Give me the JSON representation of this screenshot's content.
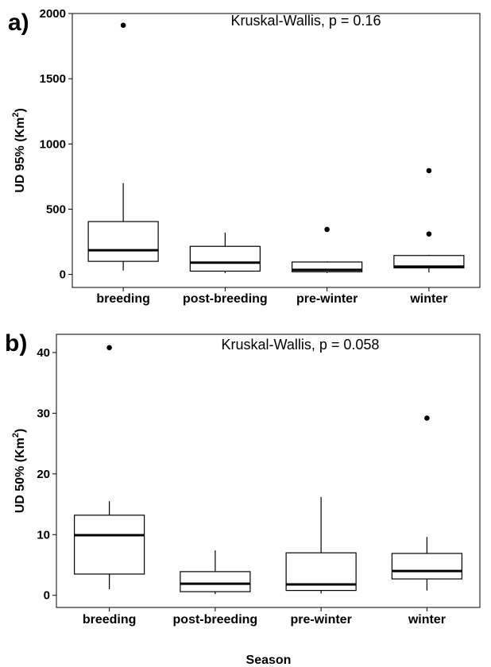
{
  "chart_data": [
    {
      "type": "boxplot",
      "panel_label": "a)",
      "annotation": "Kruskal-Wallis, p = 0.16",
      "ylabel_main": "UD 95% (Km",
      "ylabel_sup": "2",
      "ylabel_close": ")",
      "ylim": [
        -100,
        2000
      ],
      "yticks": [
        0,
        500,
        1000,
        1500,
        2000
      ],
      "categories": [
        "breeding",
        "post-breeding",
        "pre-winter",
        "winter"
      ],
      "boxes": [
        {
          "q1": 100,
          "median": 185,
          "q3": 405,
          "whisker_low": 30,
          "whisker_high": 700,
          "outliers": [
            1910
          ]
        },
        {
          "q1": 25,
          "median": 90,
          "q3": 215,
          "whisker_low": 10,
          "whisker_high": 320,
          "outliers": []
        },
        {
          "q1": 20,
          "median": 35,
          "q3": 95,
          "whisker_low": 10,
          "whisker_high": 100,
          "outliers": [
            345
          ]
        },
        {
          "q1": 50,
          "median": 60,
          "q3": 145,
          "whisker_low": 15,
          "whisker_high": 150,
          "outliers": [
            310,
            795
          ]
        }
      ]
    },
    {
      "type": "boxplot",
      "panel_label": "b)",
      "annotation": "Kruskal-Wallis, p = 0.058",
      "ylabel_main": "UD 50% (Km",
      "ylabel_sup": "2",
      "ylabel_close": ")",
      "ylim": [
        -2,
        43
      ],
      "yticks": [
        0,
        10,
        20,
        30,
        40
      ],
      "categories": [
        "breeding",
        "post-breeding",
        "pre-winter",
        "winter"
      ],
      "boxes": [
        {
          "q1": 3.5,
          "median": 9.9,
          "q3": 13.2,
          "whisker_low": 1.0,
          "whisker_high": 15.5,
          "outliers": [
            40.8
          ]
        },
        {
          "q1": 0.6,
          "median": 1.9,
          "q3": 3.9,
          "whisker_low": 0.2,
          "whisker_high": 7.4,
          "outliers": []
        },
        {
          "q1": 0.8,
          "median": 1.8,
          "q3": 7.0,
          "whisker_low": 0.3,
          "whisker_high": 16.2,
          "outliers": []
        },
        {
          "q1": 2.7,
          "median": 4.0,
          "q3": 6.9,
          "whisker_low": 0.8,
          "whisker_high": 9.6,
          "outliers": [
            29.2
          ]
        }
      ]
    }
  ],
  "xlabel": "Season"
}
